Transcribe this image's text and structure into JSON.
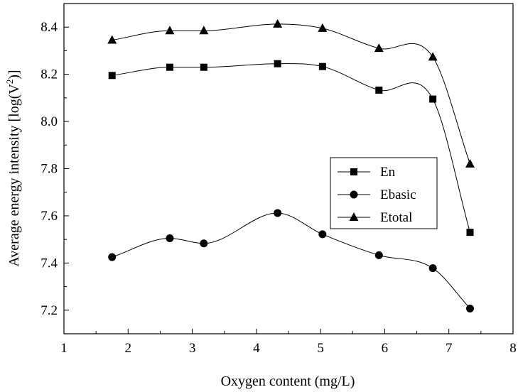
{
  "chart_data": {
    "type": "scatter",
    "title": "",
    "xlabel": "Oxygen content (mg/L)",
    "ylabel": "Average energy intensity [log(V²)]",
    "ylabel_main": "Average energy intensity [log(V",
    "ylabel_sup": "2",
    "ylabel_tail": ")]",
    "xlim": [
      1,
      8
    ],
    "ylim": [
      7.1,
      8.5
    ],
    "xticks": [
      1,
      2,
      3,
      4,
      5,
      6,
      7,
      8
    ],
    "yticks": [
      7.2,
      7.4,
      7.6,
      7.8,
      8.0,
      8.2,
      8.4
    ],
    "ytick_labels": [
      "7.2",
      "7.4",
      "7.6",
      "7.8",
      "8.0",
      "8.2",
      "8.4"
    ],
    "grid": false,
    "legend_position": "center-right",
    "line_color": "#000000",
    "series": [
      {
        "name": "En",
        "marker": "square",
        "x": [
          1.75,
          2.65,
          3.18,
          4.33,
          5.03,
          5.91,
          6.75,
          7.33
        ],
        "y": [
          8.195,
          8.23,
          8.23,
          8.245,
          8.233,
          8.133,
          8.095,
          7.53
        ]
      },
      {
        "name": "Ebasic",
        "marker": "circle",
        "x": [
          1.75,
          2.65,
          3.18,
          4.33,
          5.03,
          5.91,
          6.75,
          7.33
        ],
        "y": [
          7.425,
          7.505,
          7.483,
          7.612,
          7.522,
          7.433,
          7.378,
          7.207
        ]
      },
      {
        "name": "Etotal",
        "marker": "triangle",
        "x": [
          1.75,
          2.65,
          3.18,
          4.33,
          5.03,
          5.91,
          6.75,
          7.33
        ],
        "y": [
          8.345,
          8.385,
          8.385,
          8.413,
          8.395,
          8.31,
          8.273,
          7.82
        ]
      }
    ]
  }
}
